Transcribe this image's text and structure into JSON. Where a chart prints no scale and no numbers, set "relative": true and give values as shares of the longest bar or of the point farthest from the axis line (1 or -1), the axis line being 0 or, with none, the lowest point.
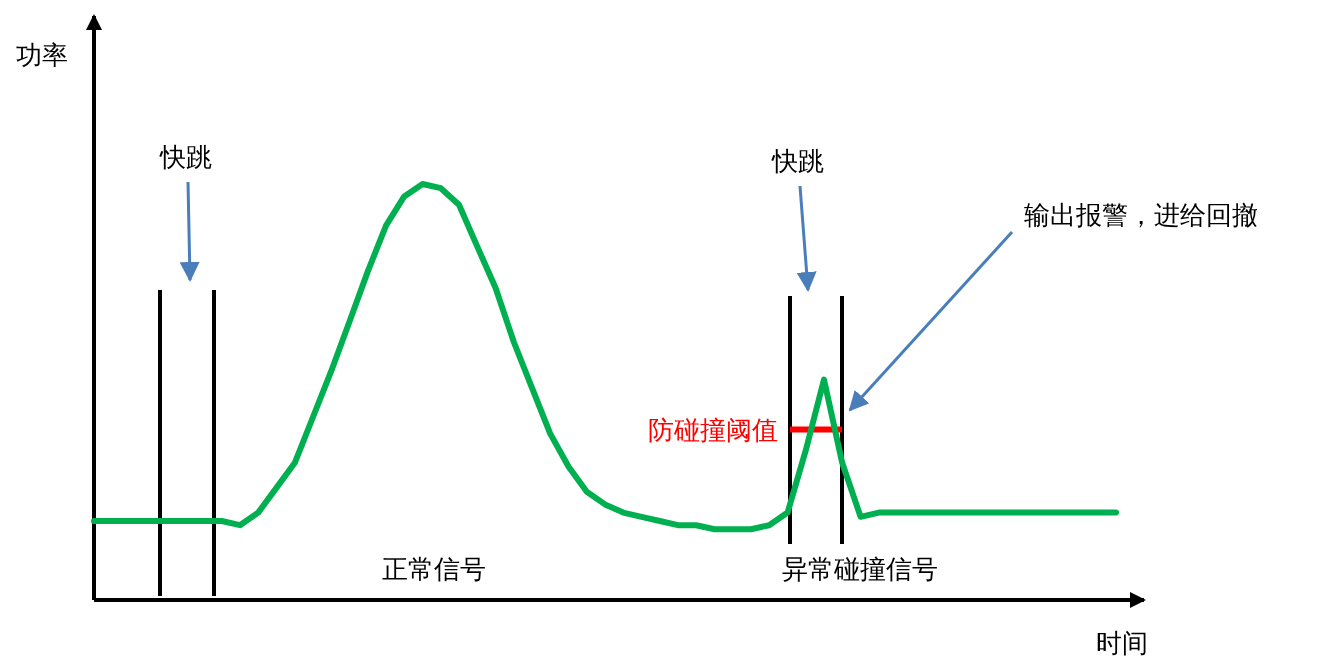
{
  "chart_data": {
    "type": "line",
    "relative": true,
    "xlabel": "时间",
    "ylabel": "功率",
    "categories": [
      null,
      null,
      null,
      null,
      null,
      null,
      null,
      null,
      null,
      null,
      null,
      null,
      null,
      null,
      null,
      null,
      null,
      null,
      null,
      null,
      null,
      null,
      null,
      null,
      null,
      null,
      null,
      null,
      null,
      null,
      null,
      null,
      null,
      null,
      null,
      null,
      null,
      null,
      null,
      null,
      null,
      null,
      null,
      null,
      null,
      null,
      null,
      null,
      null,
      null,
      null,
      null,
      null,
      null,
      null,
      null,
      null
    ],
    "series": [
      {
        "color": "#00b050",
        "values": [
          0.19,
          0.19,
          0.19,
          0.19,
          0.19,
          0.19,
          0.19,
          0.19,
          0.18,
          0.21,
          0.27,
          0.33,
          0.44,
          0.55,
          0.67,
          0.79,
          0.9,
          0.97,
          1.0,
          0.99,
          0.95,
          0.85,
          0.75,
          0.62,
          0.51,
          0.4,
          0.32,
          0.26,
          0.23,
          0.21,
          0.2,
          0.19,
          0.18,
          0.18,
          0.17,
          0.17,
          0.17,
          0.18,
          0.21,
          0.36,
          0.53,
          0.33,
          0.2,
          0.21,
          0.21,
          0.21,
          0.21,
          0.21,
          0.21,
          0.21,
          0.21,
          0.21,
          0.21,
          0.21,
          0.21,
          0.21,
          0.21
        ]
      }
    ],
    "ref_lines": [
      {
        "axis": "y",
        "value": 0.41,
        "label": "防碰撞阈值",
        "color": "#ff0000"
      }
    ],
    "annotations": [
      "快跳",
      "快跳",
      "输出报警，进给回撤",
      "正常信号",
      "异常碰撞信号"
    ]
  }
}
